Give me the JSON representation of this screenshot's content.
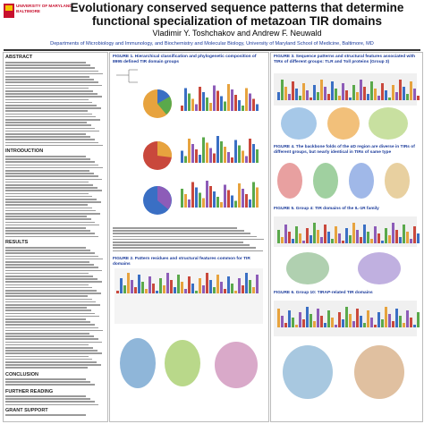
{
  "header": {
    "institution": "UNIVERSITY OF MARYLAND",
    "campus": "BALTIMORE",
    "title": "Evolutionary conserved sequence patterns that determine functional specialization of metazoan TIR domains",
    "authors": "Vladimir Y. Toshchakov and Andrew F. Neuwald",
    "affiliation": "Departments of Microbiology and Immunology, and Biochemistry and Molecular Biology, University of Maryland School of Medicine, Baltimore, MD"
  },
  "sections": [
    "ABSTRACT",
    "INTRODUCTION",
    "RESULTS",
    "CONCLUSION",
    "FURTHER READING",
    "GRANT SUPPORT"
  ],
  "figures": [
    "FIGURE 1. Hierarchical classification and phylogenetic composition of 8995 defined TIR domain groups",
    "FIGURE 2. Pattern residues and structural features common for TIR domains",
    "FIGURE 3. Sequence patterns and structural features associated with TIRs of different groups: TLR and Toll proteins (Group 3)",
    "FIGURE 4. The backbone folds of the αD region are diverse in TIRs of different groups, but nearly identical in TIRs of same type",
    "FIGURE 5. Group 4: TIR domains of the IL-1R family",
    "FIGURE 6. Group 10: TIRAP-related TIR domains"
  ]
}
